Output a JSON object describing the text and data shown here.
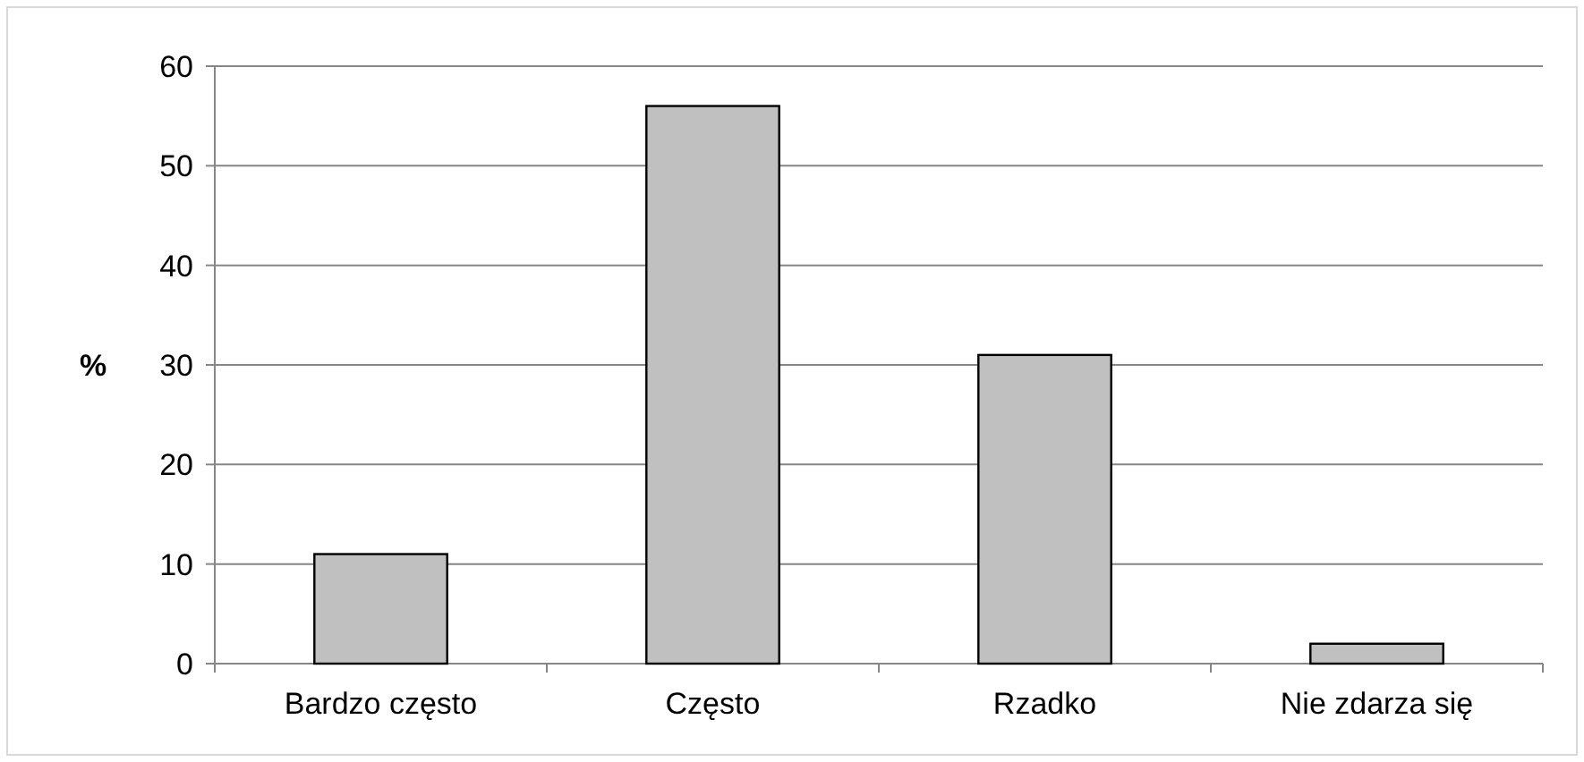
{
  "chart_data": {
    "type": "bar",
    "ylabel": "%",
    "categories": [
      "Bardzo często",
      "Często",
      "Rzadko",
      "Nie zdarza się"
    ],
    "values": [
      11,
      56,
      31,
      2
    ],
    "color": "#c0c0c0",
    "ylim": [
      0,
      60
    ],
    "yticks": [
      0,
      10,
      20,
      30,
      40,
      50,
      60
    ],
    "grid": "y"
  }
}
